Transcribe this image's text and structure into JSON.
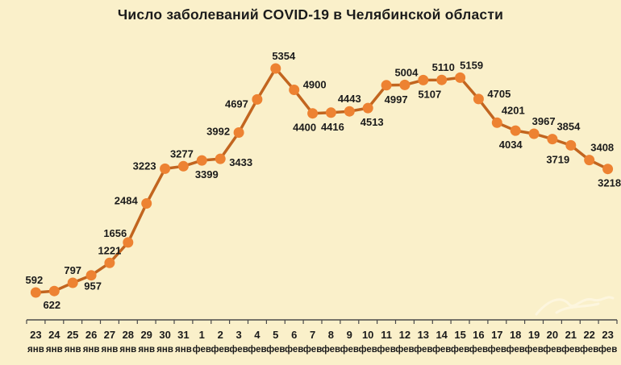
{
  "chart_data": {
    "type": "line",
    "title": "Число заболеваний COVID-19 в Челябинской области",
    "xlabel": "",
    "ylabel": "",
    "legend": false,
    "grid": false,
    "y_axis_shown": false,
    "ylim": [
      592,
      5354
    ],
    "x_days": [
      "23",
      "24",
      "25",
      "26",
      "27",
      "28",
      "29",
      "30",
      "31",
      "1",
      "2",
      "3",
      "4",
      "5",
      "6",
      "7",
      "8",
      "9",
      "10",
      "11",
      "12",
      "13",
      "14",
      "15",
      "16",
      "17",
      "18",
      "19",
      "20",
      "21",
      "22",
      "23"
    ],
    "x_months": [
      "янв",
      "янв",
      "янв",
      "янв",
      "янв",
      "янв",
      "янв",
      "янв",
      "янв",
      "фев",
      "фев",
      "фев",
      "фев",
      "фев",
      "фев",
      "фев",
      "фев",
      "фев",
      "фев",
      "фев",
      "фев",
      "фев",
      "фев",
      "фев",
      "фев",
      "фев",
      "фев",
      "фев",
      "фев",
      "фев",
      "фев",
      "фев"
    ],
    "values": [
      592,
      622,
      797,
      957,
      1221,
      1656,
      2484,
      3223,
      3277,
      3399,
      3433,
      3992,
      4697,
      5354,
      4900,
      4400,
      4416,
      4443,
      4513,
      4997,
      5004,
      5107,
      5110,
      5159,
      4705,
      4201,
      4034,
      3967,
      3854,
      3719,
      3408,
      3218
    ],
    "label_pos": [
      "above",
      "below",
      "above",
      "below",
      "above",
      "above",
      "left",
      "left",
      "above",
      "below",
      "right",
      "left",
      "left",
      "above",
      "right",
      "below",
      "below",
      "above",
      "below",
      "below",
      "above",
      "below",
      "above",
      "above",
      "right",
      "above",
      "below",
      "above",
      "above",
      "below",
      "above",
      "below"
    ],
    "label_dx": [
      -2,
      -3,
      0,
      2,
      0,
      -16,
      0,
      0,
      -2,
      6,
      0,
      0,
      0,
      10,
      0,
      -10,
      2,
      0,
      5,
      12,
      2,
      8,
      2,
      14,
      0,
      20,
      -6,
      12,
      20,
      -16,
      16,
      2
    ],
    "label_dy": [
      0,
      0,
      0,
      -4,
      0,
      4,
      -4,
      -4,
      0,
      0,
      4,
      -2,
      5,
      0,
      -7,
      0,
      0,
      0,
      0,
      0,
      0,
      0,
      0,
      0,
      -7,
      0,
      0,
      0,
      0,
      0,
      0,
      0
    ],
    "colors": {
      "background": "#FAF0CA",
      "line": "#C2651F",
      "marker": "#ED8232",
      "text": "#1B1B1B",
      "axis": "#4A4A4A",
      "watermark": "#FFFCEF"
    }
  }
}
